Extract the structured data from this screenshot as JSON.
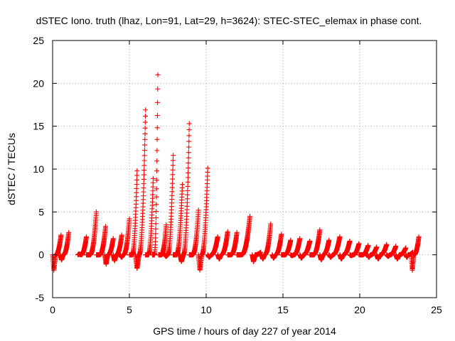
{
  "chart_data": {
    "type": "scatter",
    "title": "dSTEC Iono. truth (lhaz, Lon=91, Lat=29, h=3624): STEC-STEC_elemax in phase cont.",
    "xlabel": "GPS time / hours of day 227 of year 2014",
    "ylabel": "dSTEC  / TECUs",
    "xlim": [
      0,
      25
    ],
    "ylim": [
      -5,
      25
    ],
    "xticks": [
      0,
      5,
      10,
      15,
      20,
      25
    ],
    "yticks": [
      -5,
      0,
      5,
      10,
      15,
      20,
      25
    ],
    "grid": true,
    "legend": "none",
    "marker": "plus",
    "color": "#ff0000",
    "arcs": [
      {
        "t0": 0.0,
        "t1": 0.55,
        "y0": -1.8,
        "y1": 2.3
      },
      {
        "t0": 0.5,
        "t1": 1.05,
        "y0": -0.6,
        "y1": 2.6
      },
      {
        "t0": 1.65,
        "t1": 2.2,
        "y0": 0.1,
        "y1": 2.1
      },
      {
        "t0": 2.2,
        "t1": 2.85,
        "y0": 0.0,
        "y1": 5.0
      },
      {
        "t0": 2.85,
        "t1": 3.45,
        "y0": 0.0,
        "y1": 3.3
      },
      {
        "t0": 3.4,
        "t1": 3.95,
        "y0": -1.1,
        "y1": 1.9
      },
      {
        "t0": 3.95,
        "t1": 4.5,
        "y0": -0.7,
        "y1": 2.3
      },
      {
        "t0": 4.4,
        "t1": 5.0,
        "y0": -0.3,
        "y1": 4.2
      },
      {
        "t0": 5.0,
        "t1": 5.5,
        "y0": 0.0,
        "y1": 9.8
      },
      {
        "t0": 5.4,
        "t1": 6.05,
        "y0": -1.6,
        "y1": 16.9
      },
      {
        "t0": 6.05,
        "t1": 6.55,
        "y0": 0.0,
        "y1": 8.9
      },
      {
        "t0": 6.5,
        "t1": 6.85,
        "y0": 0.0,
        "y1": 21.0
      },
      {
        "t0": 6.9,
        "t1": 7.4,
        "y0": 0.0,
        "y1": 3.5
      },
      {
        "t0": 7.3,
        "t1": 7.85,
        "y0": -0.2,
        "y1": 11.6
      },
      {
        "t0": 7.85,
        "t1": 8.45,
        "y0": 0.0,
        "y1": 8.2
      },
      {
        "t0": 8.3,
        "t1": 8.9,
        "y0": -0.8,
        "y1": 15.3
      },
      {
        "t0": 8.9,
        "t1": 9.5,
        "y0": 0.0,
        "y1": 5.2
      },
      {
        "t0": 9.5,
        "t1": 10.1,
        "y0": -1.8,
        "y1": 10.1
      },
      {
        "t0": 10.1,
        "t1": 10.75,
        "y0": -0.3,
        "y1": 2.1
      },
      {
        "t0": 10.75,
        "t1": 11.4,
        "y0": -0.5,
        "y1": 2.7
      },
      {
        "t0": 11.4,
        "t1": 12.0,
        "y0": 0.0,
        "y1": 2.6
      },
      {
        "t0": 12.0,
        "t1": 12.85,
        "y0": 0.0,
        "y1": 4.5
      },
      {
        "t0": 13.0,
        "t1": 13.55,
        "y0": -0.8,
        "y1": 0.3
      },
      {
        "t0": 13.6,
        "t1": 14.2,
        "y0": -0.5,
        "y1": 3.6
      },
      {
        "t0": 14.3,
        "t1": 14.9,
        "y0": -0.4,
        "y1": 2.4
      },
      {
        "t0": 14.9,
        "t1": 15.5,
        "y0": 0.0,
        "y1": 1.7
      },
      {
        "t0": 15.5,
        "t1": 16.1,
        "y0": -0.1,
        "y1": 1.9
      },
      {
        "t0": 16.1,
        "t1": 16.75,
        "y0": -0.4,
        "y1": 1.6
      },
      {
        "t0": 16.75,
        "t1": 17.4,
        "y0": 0.0,
        "y1": 2.9
      },
      {
        "t0": 17.4,
        "t1": 18.0,
        "y0": -0.6,
        "y1": 1.7
      },
      {
        "t0": 18.0,
        "t1": 18.7,
        "y0": -0.3,
        "y1": 2.1
      },
      {
        "t0": 18.7,
        "t1": 19.35,
        "y0": -0.5,
        "y1": 1.6
      },
      {
        "t0": 19.35,
        "t1": 19.95,
        "y0": -0.1,
        "y1": 1.3
      },
      {
        "t0": 19.95,
        "t1": 20.55,
        "y0": 0.0,
        "y1": 1.1
      },
      {
        "t0": 20.5,
        "t1": 21.1,
        "y0": -0.3,
        "y1": 0.9
      },
      {
        "t0": 21.1,
        "t1": 21.75,
        "y0": -0.5,
        "y1": 1.2
      },
      {
        "t0": 21.75,
        "t1": 22.35,
        "y0": -0.2,
        "y1": 1.0
      },
      {
        "t0": 22.35,
        "t1": 23.0,
        "y0": -0.5,
        "y1": 0.8
      },
      {
        "t0": 23.0,
        "t1": 23.45,
        "y0": -0.3,
        "y1": 0.3
      },
      {
        "t0": 23.35,
        "t1": 23.85,
        "y0": -1.8,
        "y1": 2.1
      }
    ]
  }
}
